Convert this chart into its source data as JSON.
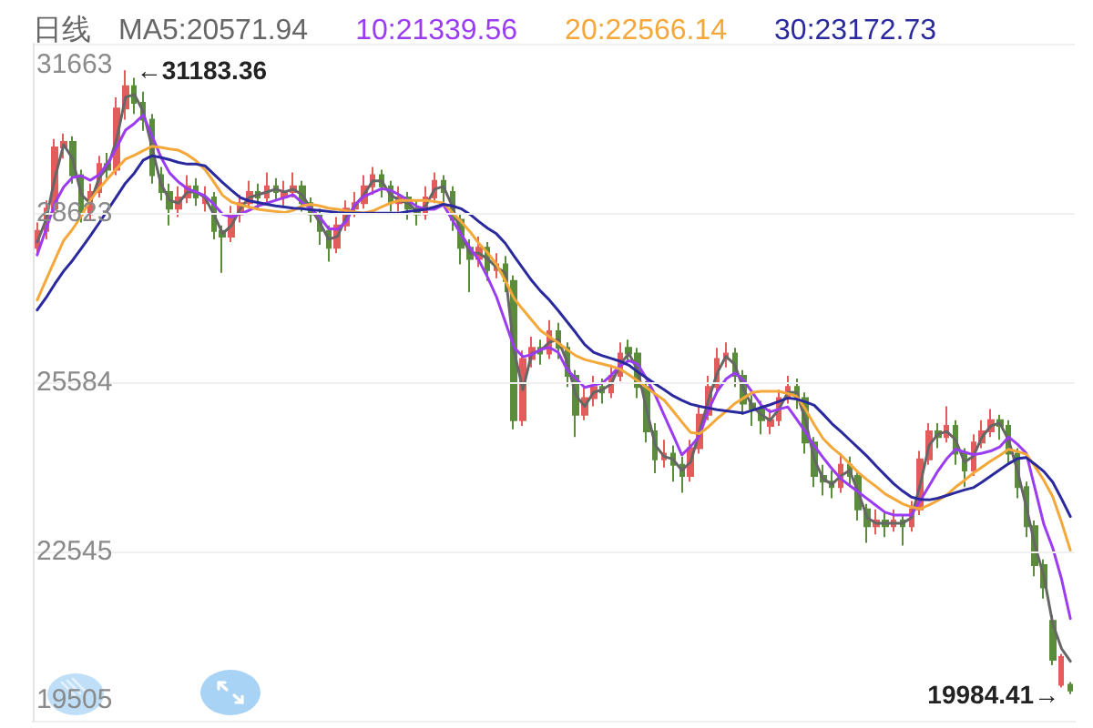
{
  "chart_data": {
    "type": "candlestick",
    "title": "日线",
    "categories": [
      null,
      null,
      null,
      null,
      null,
      null,
      null,
      null,
      null,
      null,
      null,
      null,
      null,
      null,
      null,
      null,
      null,
      null,
      null,
      null,
      null,
      null,
      null,
      null,
      null,
      null,
      null,
      null,
      null,
      null,
      null,
      null,
      null,
      null,
      null,
      null,
      null,
      null,
      null,
      null,
      null,
      null,
      null,
      null,
      null,
      null,
      null,
      null,
      null,
      null,
      null,
      null,
      null,
      null,
      null,
      null,
      null,
      null,
      null,
      null,
      null,
      null,
      null,
      null,
      null,
      null,
      null,
      null,
      null,
      null,
      null,
      null,
      null,
      null,
      null,
      null,
      null,
      null,
      null,
      null,
      null,
      null,
      null,
      null,
      null,
      null,
      null,
      null,
      null,
      null,
      null,
      null,
      null,
      null,
      null,
      null,
      null,
      null,
      null,
      null,
      null,
      null,
      null,
      null,
      null,
      null,
      null,
      null,
      null,
      null,
      null,
      null,
      null,
      null,
      null,
      null,
      null,
      null
    ],
    "ohlc": [
      [
        28000,
        28450,
        27850,
        28300
      ],
      [
        28300,
        28850,
        28150,
        28700
      ],
      [
        28700,
        29950,
        28600,
        29800
      ],
      [
        29800,
        30050,
        29600,
        29900
      ],
      [
        29900,
        30000,
        29150,
        29300
      ],
      [
        29300,
        29400,
        28450,
        28600
      ],
      [
        28600,
        29150,
        28500,
        29000
      ],
      [
        29000,
        29650,
        28900,
        29500
      ],
      [
        29500,
        29700,
        29250,
        29400
      ],
      [
        29400,
        30700,
        29300,
        30500
      ],
      [
        30500,
        31183.36,
        30300,
        30900
      ],
      [
        30900,
        31050,
        30400,
        30600
      ],
      [
        30600,
        30800,
        30100,
        30300
      ],
      [
        30300,
        30400,
        29150,
        29300
      ],
      [
        29300,
        29450,
        28850,
        29000
      ],
      [
        29000,
        29150,
        28400,
        28700
      ],
      [
        28700,
        29100,
        28550,
        28900
      ],
      [
        28900,
        29300,
        28800,
        29100
      ],
      [
        29100,
        29250,
        28750,
        28900
      ],
      [
        28800,
        29100,
        28650,
        28900
      ],
      [
        28900,
        29000,
        28150,
        28300
      ],
      [
        28300,
        28400,
        27550,
        28200
      ],
      [
        28200,
        28750,
        28100,
        28600
      ],
      [
        28600,
        28950,
        28450,
        28800
      ],
      [
        28800,
        29200,
        28700,
        29000
      ],
      [
        29000,
        29150,
        28700,
        28900
      ],
      [
        28900,
        29350,
        28800,
        29100
      ],
      [
        29100,
        29250,
        28850,
        29000
      ],
      [
        28900,
        29200,
        28750,
        29000
      ],
      [
        29000,
        29350,
        28900,
        29100
      ],
      [
        29100,
        29200,
        28650,
        28800
      ],
      [
        28800,
        28900,
        28450,
        28600
      ],
      [
        28600,
        28700,
        28050,
        28300
      ],
      [
        28300,
        28400,
        27750,
        28000
      ],
      [
        28000,
        28550,
        27900,
        28400
      ],
      [
        28400,
        28850,
        28300,
        28700
      ],
      [
        28700,
        29000,
        28550,
        28800
      ],
      [
        28800,
        29300,
        28700,
        29100
      ],
      [
        29100,
        29450,
        28950,
        29300
      ],
      [
        29300,
        29400,
        28900,
        29100
      ],
      [
        29100,
        29200,
        28650,
        28800
      ],
      [
        28800,
        29100,
        28650,
        28900
      ],
      [
        28900,
        29000,
        28500,
        28700
      ],
      [
        28700,
        28850,
        28400,
        28600
      ],
      [
        28600,
        29100,
        28500,
        28900
      ],
      [
        28900,
        29350,
        28800,
        29200
      ],
      [
        29200,
        29300,
        28750,
        29000
      ],
      [
        29000,
        29100,
        28300,
        28500
      ],
      [
        28500,
        28600,
        27700,
        28000
      ],
      [
        28000,
        28150,
        27200,
        27800
      ],
      [
        27800,
        28200,
        27650,
        28000
      ],
      [
        28000,
        28100,
        27400,
        27600
      ],
      [
        27600,
        27900,
        27450,
        27700
      ],
      [
        27700,
        27850,
        27200,
        27400
      ],
      [
        27400,
        27500,
        24740,
        24900
      ],
      [
        24900,
        26150,
        24800,
        26000
      ],
      [
        26000,
        26400,
        25850,
        26200
      ],
      [
        26200,
        26350,
        25900,
        26100
      ],
      [
        26100,
        26700,
        26000,
        26500
      ],
      [
        26500,
        26650,
        26000,
        26200
      ],
      [
        26200,
        26300,
        25500,
        25700
      ],
      [
        25700,
        25800,
        24600,
        25000
      ],
      [
        25000,
        25500,
        24900,
        25300
      ],
      [
        25300,
        25700,
        25150,
        25500
      ],
      [
        25500,
        25650,
        25200,
        25400
      ],
      [
        25400,
        25900,
        25300,
        25700
      ],
      [
        25700,
        26300,
        25600,
        26100
      ],
      [
        26200,
        26350,
        25950,
        26100
      ],
      [
        26100,
        26200,
        25300,
        25500
      ],
      [
        25500,
        25600,
        24500,
        24700
      ],
      [
        24700,
        24850,
        23950,
        24200
      ],
      [
        24200,
        24550,
        24050,
        24300
      ],
      [
        24300,
        24450,
        23800,
        24100
      ],
      [
        24100,
        24250,
        23600,
        23900
      ],
      [
        23900,
        24550,
        23800,
        24400
      ],
      [
        24400,
        25150,
        24300,
        25000
      ],
      [
        25000,
        25700,
        24900,
        25500
      ],
      [
        25500,
        26200,
        25400,
        26000
      ],
      [
        26000,
        26300,
        25850,
        26100
      ],
      [
        26100,
        26200,
        25500,
        25700
      ],
      [
        25700,
        25800,
        25000,
        25200
      ],
      [
        25200,
        25350,
        24800,
        25100
      ],
      [
        25100,
        25250,
        24650,
        24900
      ],
      [
        24800,
        25100,
        24650,
        24900
      ],
      [
        24900,
        25450,
        24800,
        25300
      ],
      [
        25300,
        25700,
        25200,
        25500
      ],
      [
        25500,
        25650,
        25100,
        25300
      ],
      [
        25300,
        25400,
        24300,
        24500
      ],
      [
        24500,
        24600,
        23700,
        23900
      ],
      [
        23900,
        24100,
        23550,
        23800
      ],
      [
        23800,
        24000,
        23500,
        23700
      ],
      [
        23700,
        24300,
        23600,
        24100
      ],
      [
        24100,
        24250,
        23700,
        23900
      ],
      [
        23900,
        24000,
        23100,
        23300
      ],
      [
        23300,
        23400,
        22700,
        23000
      ],
      [
        23000,
        23300,
        22850,
        23100
      ],
      [
        23100,
        23250,
        22800,
        23000
      ],
      [
        23000,
        23300,
        22900,
        23100
      ],
      [
        23100,
        23200,
        22650,
        23000
      ],
      [
        23000,
        23450,
        22900,
        23300
      ],
      [
        23300,
        24350,
        23200,
        24200
      ],
      [
        24200,
        24850,
        24100,
        24700
      ],
      [
        24700,
        24850,
        24400,
        24600
      ],
      [
        24600,
        25150,
        24500,
        24800
      ],
      [
        24800,
        24900,
        24100,
        24300
      ],
      [
        24300,
        24400,
        23700,
        24000
      ],
      [
        24000,
        24650,
        23900,
        24500
      ],
      [
        24500,
        24900,
        24400,
        24700
      ],
      [
        24700,
        25100,
        24600,
        24900
      ],
      [
        24900,
        25000,
        24550,
        24800
      ],
      [
        24800,
        24900,
        24100,
        24300
      ],
      [
        24300,
        24400,
        23500,
        23700
      ],
      [
        23700,
        23800,
        22800,
        23000
      ],
      [
        23000,
        23100,
        22100,
        22300
      ],
      [
        22300,
        22400,
        21700,
        21900
      ],
      [
        21300,
        21400,
        20500,
        20600
      ],
      [
        20150,
        20700,
        20100,
        20650
      ],
      [
        20150,
        20200,
        19984.41,
        20050
      ]
    ],
    "colors": [
      "#e25c5c",
      "#e25c5c",
      "#e25c5c",
      "#e25c5c",
      "#5b8c3c",
      "#5b8c3c",
      "#e25c5c",
      "#e25c5c",
      "#5b8c3c",
      "#e25c5c",
      "#e25c5c",
      "#5b8c3c",
      "#5b8c3c",
      "#5b8c3c",
      "#5b8c3c",
      "#5b8c3c",
      "#e25c5c",
      "#e25c5c",
      "#5b8c3c",
      "#e25c5c",
      "#5b8c3c",
      "#5b8c3c",
      "#e25c5c",
      "#e25c5c",
      "#e25c5c",
      "#5b8c3c",
      "#e25c5c",
      "#5b8c3c",
      "#e25c5c",
      "#e25c5c",
      "#5b8c3c",
      "#5b8c3c",
      "#5b8c3c",
      "#5b8c3c",
      "#e25c5c",
      "#e25c5c",
      "#e25c5c",
      "#e25c5c",
      "#e25c5c",
      "#5b8c3c",
      "#5b8c3c",
      "#e25c5c",
      "#5b8c3c",
      "#5b8c3c",
      "#e25c5c",
      "#e25c5c",
      "#5b8c3c",
      "#5b8c3c",
      "#5b8c3c",
      "#5b8c3c",
      "#e25c5c",
      "#5b8c3c",
      "#e25c5c",
      "#5b8c3c",
      "#5b8c3c",
      "#e25c5c",
      "#e25c5c",
      "#5b8c3c",
      "#e25c5c",
      "#5b8c3c",
      "#5b8c3c",
      "#5b8c3c",
      "#e25c5c",
      "#e25c5c",
      "#5b8c3c",
      "#e25c5c",
      "#e25c5c",
      "#5b8c3c",
      "#5b8c3c",
      "#5b8c3c",
      "#5b8c3c",
      "#e25c5c",
      "#5b8c3c",
      "#5b8c3c",
      "#e25c5c",
      "#e25c5c",
      "#e25c5c",
      "#e25c5c",
      "#e25c5c",
      "#5b8c3c",
      "#5b8c3c",
      "#5b8c3c",
      "#5b8c3c",
      "#e25c5c",
      "#e25c5c",
      "#e25c5c",
      "#5b8c3c",
      "#5b8c3c",
      "#5b8c3c",
      "#5b8c3c",
      "#5b8c3c",
      "#e25c5c",
      "#5b8c3c",
      "#5b8c3c",
      "#5b8c3c",
      "#e25c5c",
      "#5b8c3c",
      "#e25c5c",
      "#5b8c3c",
      "#e25c5c",
      "#e25c5c",
      "#e25c5c",
      "#5b8c3c",
      "#e25c5c",
      "#5b8c3c",
      "#5b8c3c",
      "#e25c5c",
      "#e25c5c",
      "#e25c5c",
      "#5b8c3c",
      "#5b8c3c",
      "#5b8c3c",
      "#5b8c3c",
      "#5b8c3c",
      "#5b8c3c",
      "#5b8c3c",
      "#e25c5c",
      "#5b8c3c"
    ],
    "series": [
      {
        "name": "MA5:20571.94",
        "type": "line",
        "color": "#666666",
        "values": [
          28100,
          28500,
          29250,
          29850,
          29600,
          28950,
          28800,
          29250,
          29450,
          29950,
          30700,
          30750,
          30450,
          29800,
          29150,
          28850,
          28800,
          29000,
          29000,
          28900,
          28600,
          28250,
          28400,
          28700,
          28900,
          28950,
          29000,
          29050,
          29000,
          29050,
          28950,
          28700,
          28450,
          28150,
          28200,
          28550,
          28750,
          28950,
          29200,
          29200,
          28950,
          28850,
          28800,
          28650,
          28750,
          29050,
          29100,
          28750,
          28250,
          27900,
          27900,
          27800,
          27650,
          27550,
          26150,
          25450,
          26100,
          26150,
          26300,
          26350,
          25950,
          25350,
          25150,
          25400,
          25450,
          25550,
          25900,
          26100,
          25800,
          25100,
          24450,
          24250,
          24200,
          24000,
          24150,
          24700,
          25250,
          25750,
          26050,
          25900,
          25450,
          25150,
          25000,
          24900,
          25100,
          25400,
          25400,
          24900,
          24200,
          23850,
          23750,
          23900,
          24000,
          23600,
          23150,
          23050,
          23050,
          23050,
          23050,
          23150,
          23750,
          24450,
          24650,
          24700,
          24550,
          24150,
          24250,
          24600,
          24800,
          24850,
          24550,
          24000,
          23350,
          22650,
          22100,
          21250,
          20800,
          20571.94
        ]
      },
      {
        "name": "10:21339.56",
        "type": "line",
        "color": "#9b3cf2",
        "values": [
          27870,
          28330,
          28800,
          29090,
          29260,
          29290,
          29210,
          29310,
          29520,
          29800,
          30110,
          30230,
          30380,
          30010,
          29630,
          29340,
          29180,
          29060,
          29000,
          28930,
          28780,
          28600,
          28550,
          28610,
          28670,
          28750,
          28800,
          28850,
          28900,
          28950,
          28810,
          28700,
          28550,
          28340,
          28330,
          28470,
          28780,
          28920,
          28990,
          29060,
          29030,
          28950,
          28850,
          28740,
          28690,
          28690,
          28770,
          28500,
          28240,
          28000,
          27780,
          27470,
          27120,
          26670,
          26210,
          26040,
          26080,
          26170,
          26210,
          26120,
          25810,
          25650,
          25490,
          25530,
          25570,
          25710,
          25880,
          25970,
          25910,
          25650,
          25350,
          24990,
          24640,
          24280,
          24430,
          24620,
          25080,
          25420,
          25640,
          25750,
          25620,
          25400,
          25170,
          25050,
          25100,
          25140,
          24920,
          24690,
          24440,
          24230,
          24030,
          23850,
          23730,
          23610,
          23490,
          23370,
          23250,
          23200,
          23200,
          23200,
          23460,
          23720,
          23990,
          24210,
          24380,
          24330,
          24280,
          24310,
          24350,
          24420,
          24600,
          24470,
          24310,
          23670,
          23030,
          22610,
          22050,
          21339.56
        ]
      },
      {
        "name": "20:22566.14",
        "type": "line",
        "color": "#f5a83a",
        "values": [
          27060,
          27420,
          27780,
          28130,
          28330,
          28570,
          28850,
          29060,
          29240,
          29420,
          29590,
          29660,
          29740,
          29820,
          29800,
          29770,
          29750,
          29670,
          29560,
          29400,
          29180,
          28940,
          28820,
          28770,
          28730,
          28690,
          28670,
          28650,
          28630,
          28670,
          28750,
          28780,
          28750,
          28710,
          28690,
          28660,
          28640,
          28620,
          28660,
          28730,
          28800,
          28850,
          28850,
          28850,
          28850,
          28830,
          28800,
          28630,
          28470,
          28290,
          28080,
          27910,
          27700,
          27410,
          27090,
          26890,
          26700,
          26510,
          26400,
          26290,
          26170,
          26060,
          25990,
          25950,
          25910,
          25870,
          25820,
          25720,
          25610,
          25490,
          25370,
          25260,
          25070,
          24870,
          24680,
          24660,
          24780,
          24930,
          25060,
          25200,
          25300,
          25400,
          25420,
          25420,
          25420,
          25380,
          25330,
          25100,
          24820,
          24570,
          24410,
          24280,
          24120,
          23960,
          23830,
          23710,
          23580,
          23490,
          23400,
          23340,
          23310,
          23380,
          23460,
          23560,
          23700,
          23820,
          23950,
          24060,
          24170,
          24270,
          24380,
          24340,
          24290,
          24070,
          23820,
          23530,
          23070,
          22566.14
        ]
      },
      {
        "name": "30:23172.73",
        "type": "line",
        "color": "#2a2a9e",
        "values": [
          26880,
          27100,
          27350,
          27580,
          27770,
          27990,
          28210,
          28440,
          28680,
          28920,
          29160,
          29340,
          29570,
          29650,
          29620,
          29580,
          29530,
          29500,
          29500,
          29470,
          29320,
          29170,
          29030,
          28900,
          28840,
          28810,
          28780,
          28750,
          28730,
          28710,
          28700,
          28680,
          28670,
          28650,
          28630,
          28620,
          28620,
          28620,
          28620,
          28620,
          28620,
          28620,
          28650,
          28670,
          28690,
          28730,
          28780,
          28750,
          28700,
          28600,
          28470,
          28350,
          28250,
          28080,
          27850,
          27630,
          27410,
          27220,
          27060,
          26870,
          26670,
          26470,
          26260,
          26120,
          26060,
          26010,
          25960,
          25890,
          25770,
          25660,
          25550,
          25450,
          25340,
          25260,
          25190,
          25150,
          25120,
          25090,
          25070,
          25050,
          25030,
          25080,
          25130,
          25180,
          25240,
          25300,
          25280,
          25230,
          25170,
          25010,
          24840,
          24700,
          24550,
          24400,
          24250,
          24080,
          23920,
          23760,
          23630,
          23520,
          23480,
          23470,
          23500,
          23550,
          23600,
          23650,
          23690,
          23790,
          23900,
          24010,
          24120,
          24210,
          24230,
          24110,
          23980,
          23790,
          23490,
          23172.73
        ]
      }
    ],
    "ylim": [
      19505,
      31663
    ],
    "yticks": [
      19505,
      22545,
      25584,
      28623,
      31663
    ],
    "grid": "y",
    "legend": "top",
    "marker": "none",
    "tick_labels": "y",
    "annotations": [
      "←31183.36",
      "19984.41→"
    ]
  }
}
